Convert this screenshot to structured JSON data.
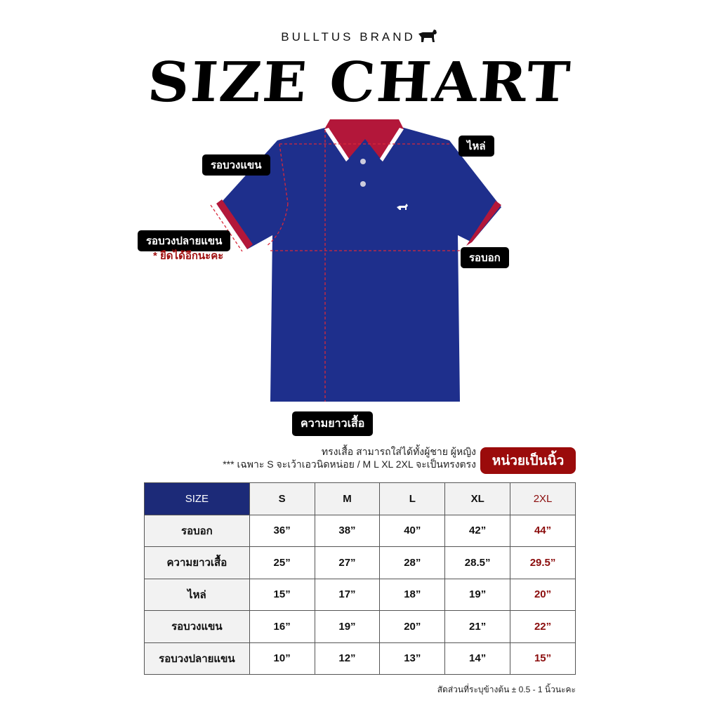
{
  "brand": "BULLTUS BRAND",
  "title": "SIZE CHART",
  "labels": {
    "armhole": "รอบวงแขน",
    "shoulder": "ไหล่",
    "sleeve_opening": "รอบวงปลายแขน",
    "stretch_note": "* ยืดได้อีกนะคะ",
    "chest": "รอบอก",
    "length": "ความยาวเสื้อ"
  },
  "description": {
    "line1": "ทรงเสื้อ สามารถใส่ได้ทั้งผู้ชาย ผู้หญิง",
    "line2": "*** เฉพาะ S จะเว้าเอวนิดหน่อย / M L XL 2XL จะเป็นทรงตรง"
  },
  "unit_badge": "หน่วยเป็นนิ้ว",
  "table": {
    "header": [
      "SIZE",
      "S",
      "M",
      "L",
      "XL",
      "2XL"
    ],
    "rows": [
      {
        "label": "รอบอก",
        "values": [
          "36”",
          "38”",
          "40”",
          "42”",
          "44”"
        ]
      },
      {
        "label": "ความยาวเสื้อ",
        "values": [
          "25”",
          "27”",
          "28”",
          "28.5”",
          "29.5”"
        ]
      },
      {
        "label": "ไหล่",
        "values": [
          "15”",
          "17”",
          "18”",
          "19”",
          "20”"
        ]
      },
      {
        "label": "รอบวงแขน",
        "values": [
          "16”",
          "19”",
          "20”",
          "21”",
          "22”"
        ]
      },
      {
        "label": "รอบวงปลายแขน",
        "values": [
          "10”",
          "12”",
          "13”",
          "14”",
          "15”"
        ]
      }
    ]
  },
  "footnote": "สัดส่วนที่ระบุข้างต้น ± 0.5 - 1 นิ้วนะคะ",
  "colors": {
    "shirt": "#1e2f8c",
    "collar": "#b3173a",
    "accent": "#9b0b0b",
    "header": "#1c2a78"
  }
}
